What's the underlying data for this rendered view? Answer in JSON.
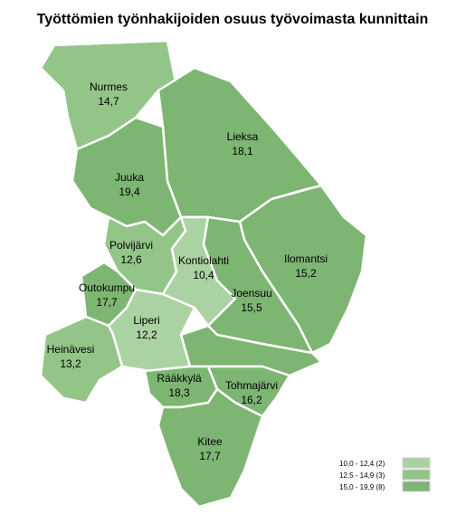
{
  "title": "Työttömien työnhakijoiden osuus työvoimasta kunnittain",
  "regions": [
    {
      "name": "Nurmes",
      "value": "14,7",
      "color": "#93c588"
    },
    {
      "name": "Lieksa",
      "value": "18,1",
      "color": "#7db573"
    },
    {
      "name": "Juuka",
      "value": "19,4",
      "color": "#7db573"
    },
    {
      "name": "Ilomantsi",
      "value": "15,2",
      "color": "#7db573"
    },
    {
      "name": "Polvijärvi",
      "value": "12,6",
      "color": "#93c588"
    },
    {
      "name": "Kontiolahti",
      "value": "10,4",
      "color": "#abd2a2"
    },
    {
      "name": "Joensuu",
      "value": "15,5",
      "color": "#7db573"
    },
    {
      "name": "Outokumpu",
      "value": "17,7",
      "color": "#7db573"
    },
    {
      "name": "Liperi",
      "value": "12,2",
      "color": "#abd2a2"
    },
    {
      "name": "Heinävesi",
      "value": "13,2",
      "color": "#93c588"
    },
    {
      "name": "Rääkkylä",
      "value": "18,3",
      "color": "#7db573"
    },
    {
      "name": "Tohmajärvi",
      "value": "16,2",
      "color": "#7db573"
    },
    {
      "name": "Kitee",
      "value": "17,7",
      "color": "#7db573"
    }
  ],
  "legend": [
    {
      "label": "10,0 - 12,4 (2)",
      "color": "#abd2a2"
    },
    {
      "label": "12,5 - 14,9 (3)",
      "color": "#93c588"
    },
    {
      "label": "15,0 - 19,9 (8)",
      "color": "#7db573"
    }
  ]
}
